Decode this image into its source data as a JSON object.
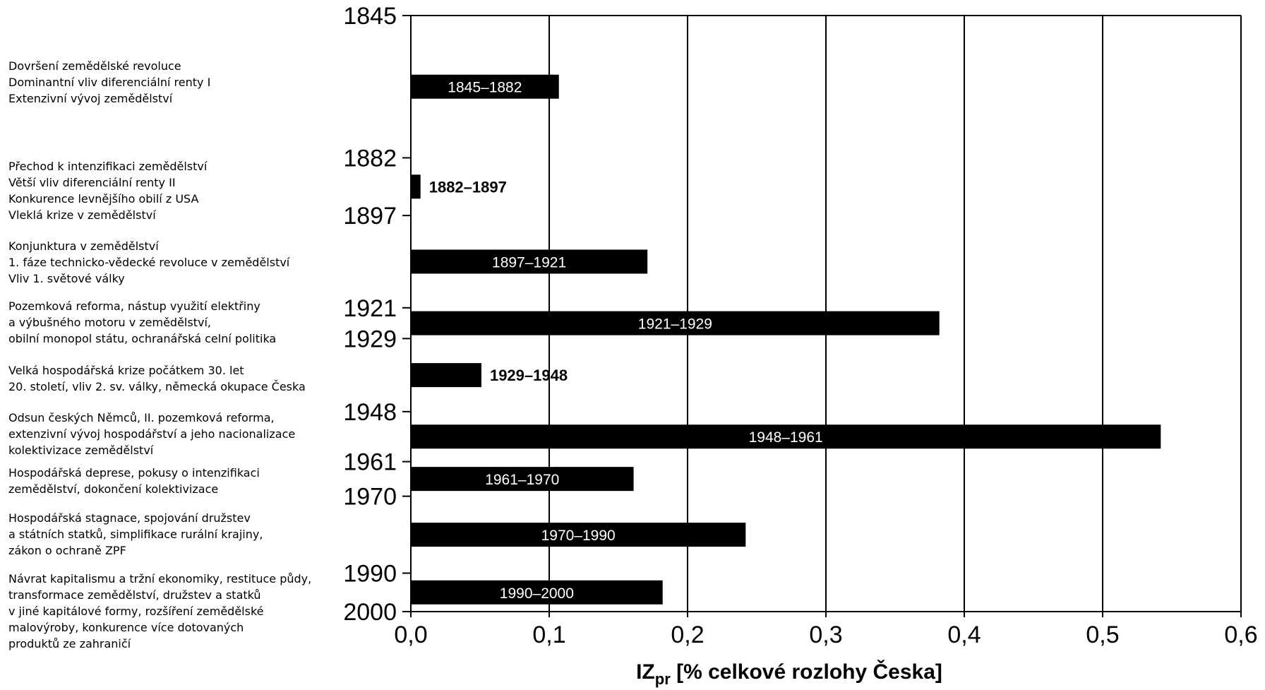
{
  "chart_data": {
    "type": "bar",
    "orientation": "horizontal",
    "xlabel_main": "IZ",
    "xlabel_sub": "pr",
    "xlabel_rest": " [% celkové rozlohy Česka]",
    "xlim": [
      0,
      0.6
    ],
    "x_ticks": [
      0,
      0.1,
      0.2,
      0.3,
      0.4,
      0.5,
      0.6
    ],
    "x_tick_labels": [
      "0,0",
      "0,1",
      "0,2",
      "0,3",
      "0,4",
      "0,5",
      "0,6"
    ],
    "vertical_grid": true,
    "y_axis": "years",
    "y_range": [
      1845,
      2000
    ],
    "y_tick_years": [
      1845,
      1882,
      1897,
      1921,
      1929,
      1948,
      1961,
      1970,
      1990,
      2000
    ],
    "y_tick_labels": [
      "1845",
      "1882",
      "1897",
      "1921",
      "1929",
      "1948",
      "1961",
      "1970",
      "1990",
      "2000"
    ],
    "bars": [
      {
        "label": "1845–1882",
        "value": 0.107,
        "start": 1845,
        "end": 1882,
        "label_outside": false
      },
      {
        "label": "1882–1897",
        "value": 0.007,
        "start": 1882,
        "end": 1897,
        "label_outside": true
      },
      {
        "label": "1897–1921",
        "value": 0.171,
        "start": 1897,
        "end": 1921,
        "label_outside": false
      },
      {
        "label": "1921–1929",
        "value": 0.382,
        "start": 1921,
        "end": 1929,
        "label_outside": false
      },
      {
        "label": "1929–1948",
        "value": 0.051,
        "start": 1929,
        "end": 1948,
        "label_outside": true
      },
      {
        "label": "1948–1961",
        "value": 0.542,
        "start": 1948,
        "end": 1961,
        "label_outside": false
      },
      {
        "label": "1961–1970",
        "value": 0.161,
        "start": 1961,
        "end": 1970,
        "label_outside": false
      },
      {
        "label": "1970–1990",
        "value": 0.242,
        "start": 1970,
        "end": 1990,
        "label_outside": false
      },
      {
        "label": "1990–2000",
        "value": 0.182,
        "start": 1990,
        "end": 2000,
        "label_outside": false
      }
    ],
    "bar_color": "#000000",
    "annotations": [
      {
        "lines": [
          "Dovršení zemědělské revoluce",
          "Dominantní vliv diferenciální renty I",
          "Extenzivní vývoj zemědělství"
        ]
      },
      {
        "lines": [
          "Přechod k intenzifikaci zemědělství",
          "Větší vliv diferenciální renty II",
          "Konkurence levnějšího obilí z USA",
          "Vleklá krize v zemědělství"
        ]
      },
      {
        "lines": [
          "Konjunktura v zemědělství",
          "1. fáze technicko-vědecké revoluce v zemědělství",
          "Vliv 1. světové války"
        ]
      },
      {
        "lines": [
          "Pozemková reforma, nástup využití elektřiny",
          "a výbušného motoru v zemědělství,",
          "obilní monopol státu, ochranářská celní politika"
        ]
      },
      {
        "lines": [
          "Velká hospodářská krize počátkem 30. let",
          "20. století, vliv 2. sv. války, německá okupace Česka"
        ]
      },
      {
        "lines": [
          "Odsun českých Němců, II. pozemková reforma,",
          "extenzivní vývoj hospodářství a jeho nacionalizace",
          "kolektivizace zemědělství"
        ]
      },
      {
        "lines": [
          "Hospodářská deprese, pokusy o intenzifikaci",
          "zemědělství, dokončení kolektivizace"
        ]
      },
      {
        "lines": [
          "Hospodářská stagnace, spojování družstev",
          "a státních statků, simplifikace rurální krajiny,",
          "zákon o ochraně ZPF"
        ]
      },
      {
        "lines": [
          "Návrat kapitalismu a tržní ekonomiky, restituce půdy,",
          "transformace zemědělství, družstev a statků",
          "v jiné kapitálové formy, rozšíření zemědělské",
          "malovýroby, konkurence více dotovaných",
          "produktů ze zahraničí"
        ]
      }
    ]
  }
}
